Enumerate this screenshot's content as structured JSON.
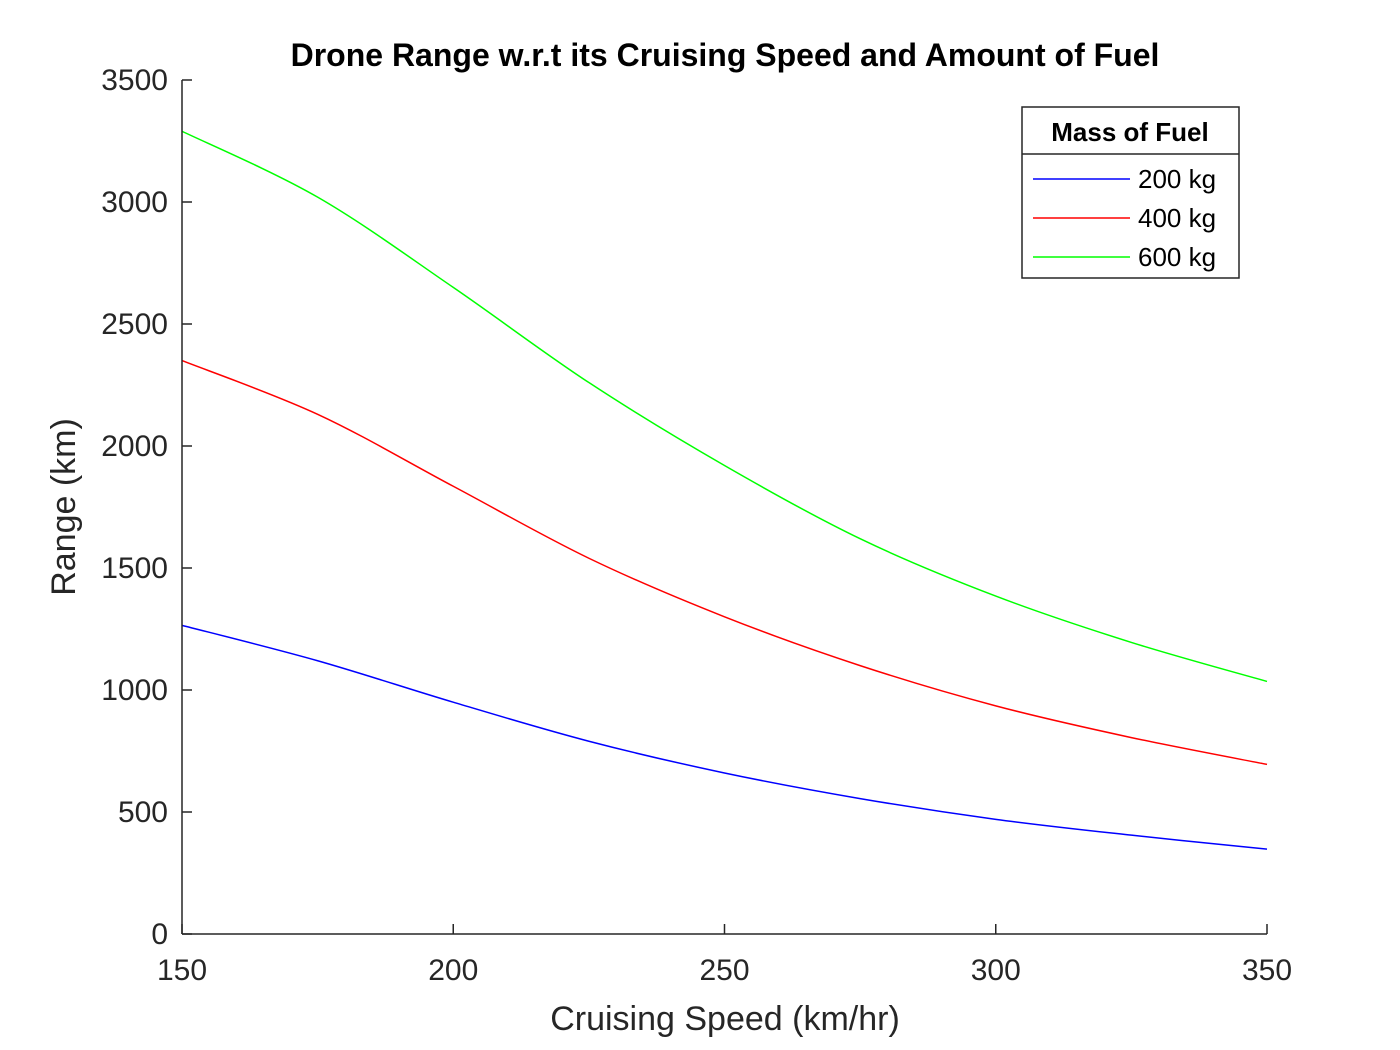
{
  "chart_data": {
    "type": "line",
    "title": "Drone Range w.r.t its Cruising Speed and Amount of Fuel",
    "xlabel": "Cruising Speed (km/hr)",
    "ylabel": "Range (km)",
    "xlim": [
      150,
      350
    ],
    "ylim": [
      0,
      3500
    ],
    "xticks": [
      "150",
      "200",
      "250",
      "300",
      "350"
    ],
    "yticks": [
      "0",
      "500",
      "1000",
      "1500",
      "2000",
      "2500",
      "3000",
      "3500"
    ],
    "grid": false,
    "legend": {
      "title": "Mass of Fuel",
      "placement": "top-right"
    },
    "x": [
      150,
      175,
      200,
      225,
      250,
      275,
      300,
      325,
      350
    ],
    "series": [
      {
        "name": "200 kg",
        "color": "#0000ff",
        "values": [
          1265,
          1120,
          950,
          790,
          660,
          555,
          470,
          405,
          348
        ]
      },
      {
        "name": "400 kg",
        "color": "#ff0000",
        "values": [
          2350,
          2130,
          1835,
          1540,
          1300,
          1100,
          935,
          805,
          695
        ]
      },
      {
        "name": "600 kg",
        "color": "#00ff00",
        "values": [
          3290,
          3020,
          2650,
          2260,
          1920,
          1620,
          1385,
          1195,
          1035
        ]
      }
    ]
  }
}
